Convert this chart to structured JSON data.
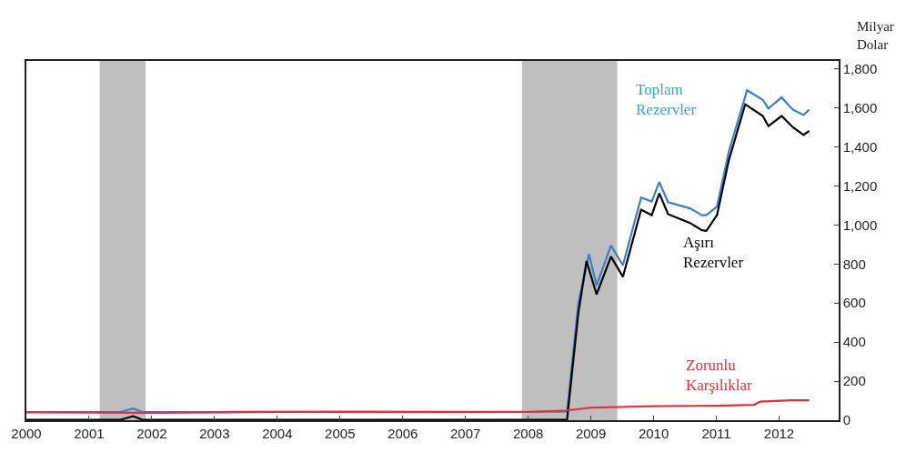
{
  "chart_data": {
    "type": "line",
    "ylabel": "Milyar\nDolar",
    "xlim": [
      2000,
      2012.95
    ],
    "xticks": [
      2000,
      2001,
      2002,
      2003,
      2004,
      2005,
      2006,
      2007,
      2008,
      2009,
      2010,
      2011,
      2012
    ],
    "ylim": [
      0,
      1840
    ],
    "yticks": [
      {
        "value": 0,
        "label": "0"
      },
      {
        "value": 200,
        "label": "200"
      },
      {
        "value": 400,
        "label": "400"
      },
      {
        "value": 600,
        "label": "600"
      },
      {
        "value": 800,
        "label": "800"
      },
      {
        "value": 1000,
        "label": "1,000"
      },
      {
        "value": 1200,
        "label": "1,200"
      },
      {
        "value": 1400,
        "label": "1,400"
      },
      {
        "value": 1600,
        "label": "1,600"
      },
      {
        "value": 1800,
        "label": "1,800"
      }
    ],
    "grid": false,
    "legend": false,
    "marker": "none",
    "line_style": "solid",
    "bands": [
      {
        "axis": "x",
        "from": 2001.17,
        "to": 2001.9,
        "color": "#bfbfbf"
      },
      {
        "axis": "x",
        "from": 2007.9,
        "to": 2009.42,
        "color": "#bfbfbf"
      }
    ],
    "series": [
      {
        "name": "Toplam Rezervler",
        "color": "#3a7fc8",
        "x": [
          2000,
          2001,
          2001.5,
          2001.7,
          2001.85,
          2003,
          2005,
          2007,
          2008.5,
          2008.62,
          2008.8,
          2008.97,
          2009.09,
          2009.32,
          2009.51,
          2009.8,
          2009.97,
          2010.09,
          2010.23,
          2010.58,
          2010.77,
          2010.84,
          2011.01,
          2011.2,
          2011.49,
          2011.74,
          2011.83,
          2012.04,
          2012.22,
          2012.39,
          2012.48
        ],
        "values": [
          42,
          42,
          42,
          60,
          42,
          42,
          44,
          43,
          44,
          45,
          600,
          850,
          690,
          895,
          793,
          1140,
          1120,
          1220,
          1117,
          1085,
          1050,
          1050,
          1094,
          1378,
          1690,
          1641,
          1596,
          1653,
          1590,
          1563,
          1591
        ]
      },
      {
        "name": "Aşırı Rezervler",
        "color": "#000000",
        "x": [
          2000,
          2001,
          2001.5,
          2001.7,
          2001.85,
          2003,
          2005,
          2007,
          2008.5,
          2008.62,
          2008.8,
          2008.93,
          2009.09,
          2009.32,
          2009.51,
          2009.8,
          2009.97,
          2010.09,
          2010.23,
          2010.58,
          2010.77,
          2010.84,
          2011.01,
          2011.2,
          2011.46,
          2011.74,
          2011.83,
          2012.04,
          2012.22,
          2012.39,
          2012.48
        ],
        "values": [
          2,
          2,
          2,
          20,
          2,
          2,
          2,
          2,
          2,
          3,
          550,
          815,
          644,
          838,
          734,
          1078,
          1050,
          1162,
          1055,
          1010,
          973,
          970,
          1050,
          1333,
          1618,
          1558,
          1506,
          1558,
          1500,
          1461,
          1482
        ]
      },
      {
        "name": "Zorunlu Karşılıklar",
        "color": "#e0303c",
        "x": [
          2000,
          2002,
          2004,
          2006,
          2008,
          2008.62,
          2009,
          2010,
          2011,
          2011.6,
          2011.7,
          2012.2,
          2012.48
        ],
        "values": [
          40,
          38,
          42,
          41,
          42,
          50,
          64,
          72,
          74,
          79,
          95,
          102,
          102
        ]
      }
    ]
  }
}
